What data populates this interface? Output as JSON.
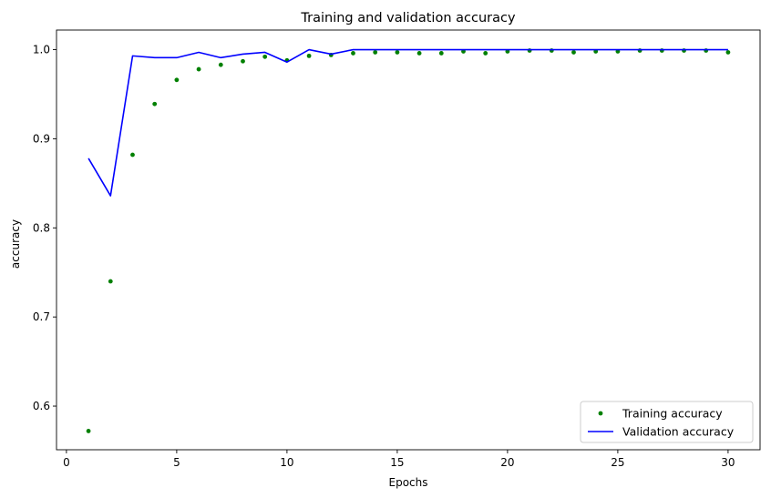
{
  "chart_data": {
    "type": "line",
    "title": "Training and validation accuracy",
    "xlabel": "Epochs",
    "ylabel": "accuracy",
    "xlim": [
      -0.45,
      31.45
    ],
    "ylim": [
      0.551,
      1.022
    ],
    "xticks": [
      0,
      5,
      10,
      15,
      20,
      25,
      30
    ],
    "yticks": [
      0.6,
      0.7,
      0.8,
      0.9,
      1.0
    ],
    "xtick_labels": [
      "0",
      "5",
      "10",
      "15",
      "20",
      "25",
      "30"
    ],
    "ytick_labels": [
      "0.6",
      "0.7",
      "0.8",
      "0.9",
      "1.0"
    ],
    "grid": false,
    "legend_position": "lower-right",
    "x": [
      1,
      2,
      3,
      4,
      5,
      6,
      7,
      8,
      9,
      10,
      11,
      12,
      13,
      14,
      15,
      16,
      17,
      18,
      19,
      20,
      21,
      22,
      23,
      24,
      25,
      26,
      27,
      28,
      29,
      30
    ],
    "series": [
      {
        "name": "Training accuracy",
        "style": "dots",
        "color": "#008000",
        "values": [
          0.572,
          0.74,
          0.882,
          0.939,
          0.966,
          0.978,
          0.983,
          0.987,
          0.992,
          0.988,
          0.993,
          0.994,
          0.996,
          0.997,
          0.997,
          0.996,
          0.996,
          0.998,
          0.996,
          0.998,
          0.999,
          0.999,
          0.997,
          0.998,
          0.998,
          0.999,
          0.999,
          0.999,
          0.999,
          0.997
        ]
      },
      {
        "name": "Validation accuracy",
        "style": "line",
        "color": "#0000ff",
        "values": [
          0.878,
          0.836,
          0.993,
          0.991,
          0.991,
          0.997,
          0.991,
          0.995,
          0.997,
          0.986,
          1.0,
          0.995,
          1.0,
          1.0,
          1.0,
          1.0,
          1.0,
          1.0,
          1.0,
          1.0,
          1.0,
          1.0,
          1.0,
          1.0,
          1.0,
          1.0,
          1.0,
          1.0,
          1.0,
          1.0
        ]
      }
    ]
  }
}
